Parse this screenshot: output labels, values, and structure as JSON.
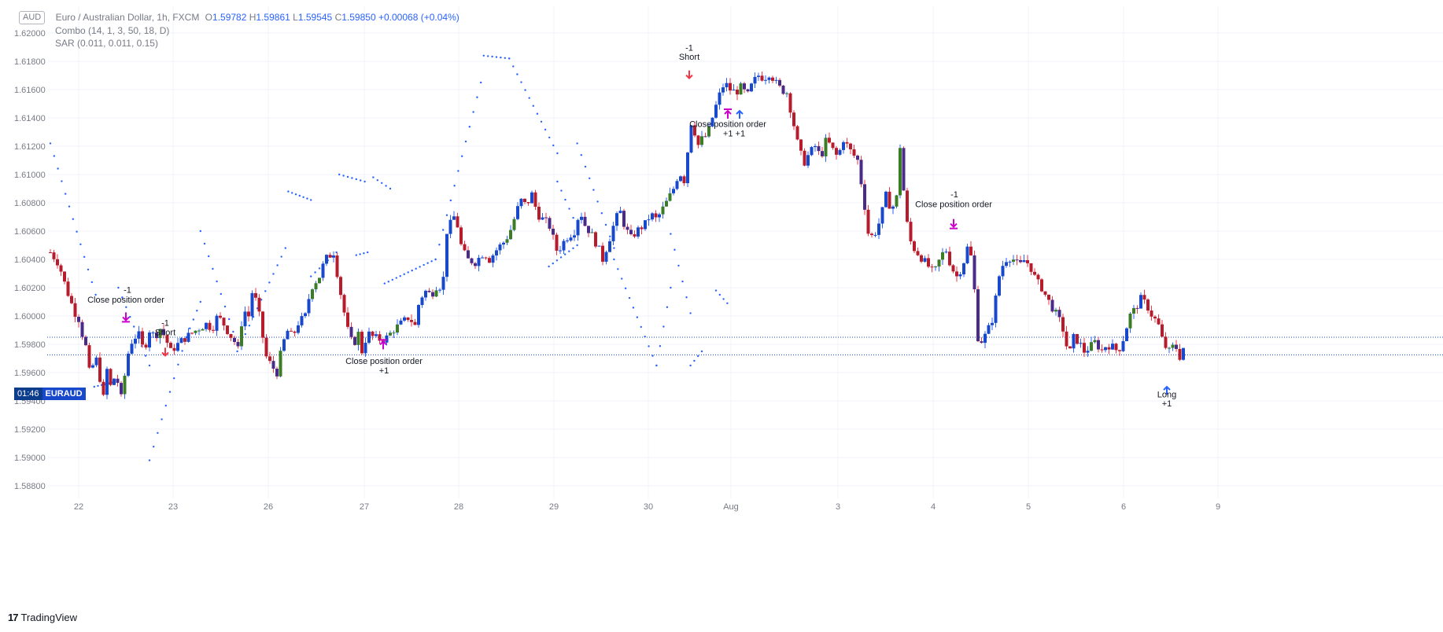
{
  "legend": {
    "currency_badge": "AUD",
    "title": "Euro / Australian Dollar, 1h, FXCM",
    "ohlc": [
      {
        "k": "O",
        "v": "1.59782"
      },
      {
        "k": "H",
        "v": "1.59861"
      },
      {
        "k": "L",
        "v": "1.59545"
      },
      {
        "k": "C",
        "v": "1.59850"
      }
    ],
    "change": "+0.00068 (+0.04%)",
    "indicators": [
      "Combo (14, 1, 3, 50, 18, D)",
      "SAR (0.011, 0.011, 0.15)"
    ]
  },
  "price_label": {
    "countdown": "01:46",
    "symbol": "EURAUD"
  },
  "branding": {
    "name": "TradingView",
    "mark": "17"
  },
  "colors": {
    "up_candle": "#1848cc",
    "down_candle": "#b71c2c",
    "up_alt": "#3a7d24",
    "down_alt": "#4a2b8a",
    "sar": "#2962ff",
    "short_arrow": "#f23645",
    "long_arrow": "#2962ff",
    "close_marker": "#cc00cc"
  },
  "chart_data": {
    "type": "candlestick",
    "symbol": "EURAUD",
    "timeframe": "1h",
    "x_ticks": [
      "22",
      "23",
      "26",
      "27",
      "28",
      "29",
      "30",
      "Aug",
      "3",
      "4",
      "5",
      "6",
      "9"
    ],
    "y_ticks": [
      "1.62000",
      "1.61800",
      "1.61600",
      "1.61400",
      "1.61200",
      "1.61000",
      "1.60800",
      "1.60600",
      "1.60400",
      "1.60200",
      "1.60000",
      "1.59800",
      "1.59600",
      "1.59400",
      "1.59200",
      "1.59000",
      "1.58800"
    ],
    "ylim": [
      1.5875,
      1.6208
    ],
    "last_price": 1.5985,
    "ref_line_price": 1.59725,
    "close_path": [
      [
        0.0,
        1.6045
      ],
      [
        0.3,
        1.6037
      ],
      [
        0.55,
        1.602
      ],
      [
        0.85,
        1.6003
      ],
      [
        1.0,
        1.5998
      ],
      [
        1.15,
        1.5985
      ],
      [
        1.3,
        1.5975
      ],
      [
        1.42,
        1.5952
      ],
      [
        1.55,
        1.5973
      ],
      [
        1.7,
        1.5965
      ],
      [
        1.85,
        1.5938
      ],
      [
        2.0,
        1.5962
      ],
      [
        2.15,
        1.5948
      ],
      [
        2.3,
        1.596
      ],
      [
        2.5,
        1.5942
      ],
      [
        2.8,
        1.598
      ],
      [
        3.1,
        1.5988
      ],
      [
        3.3,
        1.5975
      ],
      [
        3.5,
        1.599
      ],
      [
        3.7,
        1.5985
      ],
      [
        3.85,
        1.5992
      ],
      [
        4.05,
        1.5985
      ],
      [
        4.25,
        1.5975
      ],
      [
        4.6,
        1.5982
      ],
      [
        5.0,
        1.5988
      ],
      [
        5.3,
        1.5992
      ],
      [
        5.55,
        1.5995
      ],
      [
        5.7,
        1.599
      ],
      [
        5.9,
        1.6
      ],
      [
        6.1,
        1.5995
      ],
      [
        6.3,
        1.5988
      ],
      [
        6.5,
        1.5982
      ],
      [
        6.65,
        1.5975
      ],
      [
        6.8,
        1.6005
      ],
      [
        7.0,
        1.6
      ],
      [
        7.15,
        1.602
      ],
      [
        7.4,
        1.5998
      ],
      [
        7.6,
        1.5972
      ],
      [
        7.8,
        1.5965
      ],
      [
        8.0,
        1.596
      ],
      [
        8.15,
        1.5975
      ],
      [
        8.35,
        1.599
      ],
      [
        8.55,
        1.5985
      ],
      [
        8.75,
        1.5995
      ],
      [
        9.0,
        1.6
      ],
      [
        9.2,
        1.602
      ],
      [
        9.5,
        1.6028
      ],
      [
        9.7,
        1.604
      ],
      [
        10.0,
        1.6045
      ],
      [
        10.3,
        1.601
      ],
      [
        10.5,
        1.599
      ],
      [
        10.7,
        1.5978
      ],
      [
        10.85,
        1.599
      ],
      [
        11.0,
        1.5975
      ],
      [
        11.2,
        1.5988
      ],
      [
        11.4,
        1.5985
      ],
      [
        11.7,
        1.5983
      ],
      [
        11.9,
        1.5985
      ],
      [
        12.1,
        1.599
      ],
      [
        12.4,
        1.5995
      ],
      [
        12.7,
        1.6
      ],
      [
        12.85,
        1.599
      ],
      [
        13.0,
        1.6008
      ],
      [
        13.2,
        1.6018
      ],
      [
        13.45,
        1.6015
      ],
      [
        13.65,
        1.6022
      ],
      [
        13.85,
        1.602
      ],
      [
        14.0,
        1.606
      ],
      [
        14.3,
        1.6072
      ],
      [
        14.5,
        1.605
      ],
      [
        14.7,
        1.604
      ],
      [
        15.0,
        1.6038
      ],
      [
        15.3,
        1.6045
      ],
      [
        15.5,
        1.604
      ],
      [
        15.8,
        1.6048
      ],
      [
        16.0,
        1.6052
      ],
      [
        16.2,
        1.6058
      ],
      [
        16.4,
        1.607
      ],
      [
        16.6,
        1.6082
      ],
      [
        16.8,
        1.6078
      ],
      [
        17.0,
        1.6086
      ],
      [
        17.2,
        1.6072
      ],
      [
        17.4,
        1.6068
      ],
      [
        17.6,
        1.6065
      ],
      [
        17.9,
        1.6045
      ],
      [
        18.2,
        1.6055
      ],
      [
        18.5,
        1.606
      ],
      [
        18.7,
        1.6075
      ],
      [
        18.85,
        1.6065
      ],
      [
        19.1,
        1.6058
      ],
      [
        19.35,
        1.6048
      ],
      [
        19.5,
        1.604
      ],
      [
        19.7,
        1.6052
      ],
      [
        19.9,
        1.6065
      ],
      [
        20.1,
        1.6075
      ],
      [
        20.3,
        1.6062
      ],
      [
        20.5,
        1.6055
      ],
      [
        20.7,
        1.606
      ],
      [
        21.0,
        1.6065
      ],
      [
        21.2,
        1.6072
      ],
      [
        21.4,
        1.6068
      ],
      [
        21.6,
        1.6075
      ],
      [
        21.8,
        1.6082
      ],
      [
        22.0,
        1.609
      ],
      [
        22.2,
        1.6102
      ],
      [
        22.4,
        1.6095
      ],
      [
        22.6,
        1.6138
      ],
      [
        22.75,
        1.613
      ],
      [
        22.85,
        1.612
      ],
      [
        23.0,
        1.6125
      ],
      [
        23.2,
        1.6128
      ],
      [
        23.4,
        1.6142
      ],
      [
        23.6,
        1.6155
      ],
      [
        23.8,
        1.6165
      ],
      [
        24.0,
        1.616
      ],
      [
        24.2,
        1.6158
      ],
      [
        24.4,
        1.6162
      ],
      [
        24.6,
        1.6155
      ],
      [
        24.8,
        1.6165
      ],
      [
        25.0,
        1.617
      ],
      [
        25.2,
        1.6168
      ],
      [
        25.4,
        1.6172
      ],
      [
        25.6,
        1.6165
      ],
      [
        25.8,
        1.616
      ],
      [
        26.0,
        1.6158
      ],
      [
        26.2,
        1.614
      ],
      [
        26.4,
        1.612
      ],
      [
        26.6,
        1.6108
      ],
      [
        26.8,
        1.6115
      ],
      [
        27.0,
        1.612
      ],
      [
        27.2,
        1.6112
      ],
      [
        27.4,
        1.6125
      ],
      [
        27.6,
        1.6118
      ],
      [
        27.8,
        1.6112
      ],
      [
        28.0,
        1.6125
      ],
      [
        28.2,
        1.6118
      ],
      [
        28.5,
        1.611
      ],
      [
        28.7,
        1.6085
      ],
      [
        28.9,
        1.6055
      ],
      [
        29.1,
        1.6058
      ],
      [
        29.3,
        1.6068
      ],
      [
        29.5,
        1.6085
      ],
      [
        29.7,
        1.6075
      ],
      [
        29.9,
        1.6085
      ],
      [
        30.0,
        1.612
      ],
      [
        30.2,
        1.607
      ],
      [
        30.4,
        1.605
      ],
      [
        30.6,
        1.6045
      ],
      [
        30.8,
        1.604
      ],
      [
        31.0,
        1.6035
      ],
      [
        31.2,
        1.603
      ],
      [
        31.4,
        1.604
      ],
      [
        31.6,
        1.6048
      ],
      [
        31.8,
        1.6035
      ],
      [
        32.0,
        1.6028
      ],
      [
        32.2,
        1.6035
      ],
      [
        32.4,
        1.605
      ],
      [
        32.55,
        1.6038
      ],
      [
        32.75,
        1.5985
      ],
      [
        32.9,
        1.5982
      ],
      [
        33.1,
        1.599
      ],
      [
        33.3,
        1.6
      ],
      [
        33.45,
        1.6025
      ],
      [
        33.6,
        1.6035
      ],
      [
        33.8,
        1.6042
      ],
      [
        34.0,
        1.604
      ],
      [
        34.2,
        1.6035
      ],
      [
        34.4,
        1.604
      ],
      [
        34.6,
        1.6035
      ],
      [
        34.8,
        1.6025
      ],
      [
        35.0,
        1.602
      ],
      [
        35.2,
        1.6012
      ],
      [
        35.4,
        1.6005
      ],
      [
        35.6,
        1.5998
      ],
      [
        35.8,
        1.5988
      ],
      [
        35.95,
        1.597
      ],
      [
        36.1,
        1.5985
      ],
      [
        36.3,
        1.5982
      ],
      [
        36.5,
        1.5975
      ],
      [
        36.7,
        1.5978
      ],
      [
        36.9,
        1.5982
      ],
      [
        37.1,
        1.5975
      ],
      [
        37.3,
        1.598
      ],
      [
        37.5,
        1.5978
      ],
      [
        37.7,
        1.5975
      ],
      [
        37.9,
        1.5985
      ],
      [
        38.1,
        1.6
      ],
      [
        38.3,
        1.6005
      ],
      [
        38.5,
        1.6012
      ],
      [
        38.7,
        1.6008
      ],
      [
        38.9,
        1.6
      ],
      [
        39.1,
        1.5995
      ],
      [
        39.3,
        1.598
      ],
      [
        39.5,
        1.5975
      ],
      [
        39.7,
        1.598
      ],
      [
        39.9,
        1.597
      ],
      [
        40.1,
        1.5985
      ]
    ],
    "sar_segments": [
      {
        "x0": 0.0,
        "y0": 1.6122,
        "x1": 1.6,
        "y1": 1.6015
      },
      {
        "x0": 1.55,
        "y0": 1.595,
        "x1": 2.2,
        "y1": 1.5953
      },
      {
        "x0": 2.4,
        "y0": 1.602,
        "x1": 3.5,
        "y1": 1.5965
      },
      {
        "x0": 3.5,
        "y0": 1.5898,
        "x1": 4.8,
        "y1": 1.5985
      },
      {
        "x0": 4.8,
        "y0": 1.5985,
        "x1": 5.3,
        "y1": 1.601
      },
      {
        "x0": 5.3,
        "y0": 1.606,
        "x1": 6.6,
        "y1": 1.598
      },
      {
        "x0": 6.6,
        "y0": 1.5975,
        "x1": 8.3,
        "y1": 1.6048
      },
      {
        "x0": 8.4,
        "y0": 1.6088,
        "x1": 9.2,
        "y1": 1.6082
      },
      {
        "x0": 9.2,
        "y0": 1.6028,
        "x1": 10.1,
        "y1": 1.6045
      },
      {
        "x0": 10.2,
        "y0": 1.61,
        "x1": 11.1,
        "y1": 1.6095
      },
      {
        "x0": 10.8,
        "y0": 1.6043,
        "x1": 11.2,
        "y1": 1.6045
      },
      {
        "x0": 11.4,
        "y0": 1.6098,
        "x1": 12.0,
        "y1": 1.609
      },
      {
        "x0": 11.8,
        "y0": 1.6023,
        "x1": 13.6,
        "y1": 1.604
      },
      {
        "x0": 13.6,
        "y0": 1.604,
        "x1": 15.2,
        "y1": 1.6165
      },
      {
        "x0": 15.3,
        "y0": 1.6184,
        "x1": 16.2,
        "y1": 1.6182
      },
      {
        "x0": 16.2,
        "y0": 1.6182,
        "x1": 17.9,
        "y1": 1.6115
      },
      {
        "x0": 17.9,
        "y0": 1.6095,
        "x1": 18.6,
        "y1": 1.6063
      },
      {
        "x0": 17.6,
        "y0": 1.6035,
        "x1": 18.6,
        "y1": 1.605
      },
      {
        "x0": 18.6,
        "y0": 1.6122,
        "x1": 19.9,
        "y1": 1.6048
      },
      {
        "x0": 19.9,
        "y0": 1.604,
        "x1": 21.4,
        "y1": 1.5965
      },
      {
        "x0": 21.4,
        "y0": 1.5965,
        "x1": 21.9,
        "y1": 1.602
      },
      {
        "x0": 21.9,
        "y0": 1.6058,
        "x1": 22.6,
        "y1": 1.6002
      },
      {
        "x0": 22.6,
        "y0": 1.5965,
        "x1": 23.0,
        "y1": 1.5975
      },
      {
        "x0": 23.5,
        "y0": 1.6018,
        "x1": 23.9,
        "y1": 1.6009
      }
    ],
    "annotations": [
      {
        "text": "Close position order",
        "x": 160,
        "y": 1.60095
      },
      {
        "text": "-1",
        "x": 162,
        "y": 1.60165
      },
      {
        "text": "-1",
        "x": 210,
        "y": 1.5993
      },
      {
        "text": "Short",
        "x": 210,
        "y": 1.59865
      },
      {
        "text": "Close position order",
        "x": 488,
        "y": 1.5966
      },
      {
        "text": "+1",
        "x": 488,
        "y": 1.59595
      },
      {
        "text": "-1",
        "x": 876,
        "y": 1.61875
      },
      {
        "text": "Short",
        "x": 876,
        "y": 1.6181
      },
      {
        "text": "Close position order",
        "x": 925,
        "y": 1.61335
      },
      {
        "text": "+1 +1",
        "x": 933,
        "y": 1.6127
      },
      {
        "text": "-1",
        "x": 1213,
        "y": 1.6084
      },
      {
        "text": "Close position order",
        "x": 1212,
        "y": 1.6077
      },
      {
        "text": "Long",
        "x": 1483,
        "y": 1.59425
      },
      {
        "text": "+1",
        "x": 1483,
        "y": 1.5936
      }
    ],
    "trade_markers": [
      {
        "kind": "short",
        "x": 876,
        "y": 1.6168
      },
      {
        "kind": "short",
        "x": 210,
        "y": 1.5972
      },
      {
        "kind": "close-down",
        "x": 160,
        "y": 1.5997
      },
      {
        "kind": "close-down",
        "x": 1212,
        "y": 1.6063
      },
      {
        "kind": "close-up",
        "x": 487,
        "y": 1.5982
      },
      {
        "kind": "close-up",
        "x": 925,
        "y": 1.6145
      },
      {
        "kind": "long",
        "x": 940,
        "y": 1.6145
      },
      {
        "kind": "long",
        "x": 1483,
        "y": 1.595
      }
    ]
  }
}
